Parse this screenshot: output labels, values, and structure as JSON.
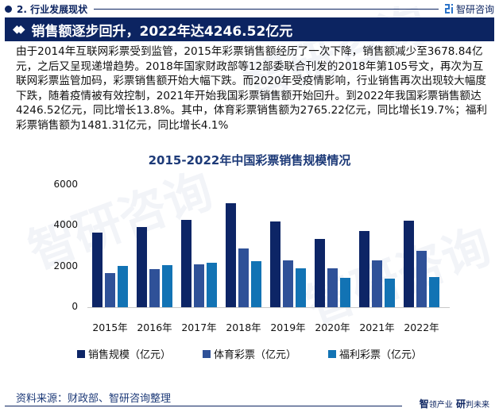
{
  "header": {
    "section": "2. 行业发展现状",
    "brand": "智研咨询",
    "title": "销售额逐步回升，2022年达4246.52亿元"
  },
  "body_text": "由于2014年互联网彩票受到监管，2015年彩票销售额经历了一次下降，销售额减少至3678.84亿元，之后又呈现递增趋势。2018年国家财政部等12部委联合刊发的2018年第105号文，再次为互联网彩票监管加码，彩票销售额开始大幅下跌。而2020年受疫情影响，行业销售再次出现较大幅度下跌，随着疫情被有效控制，2021年开始我国彩票销售额开始回升。到2022年我国彩票销售额达4246.52亿元，同比增长13.8%。其中，体育彩票销售额为2765.22亿元，同比增长19.7%；福利彩票销售额为1481.31亿元，同比增长4.1%",
  "footer": {
    "source": "资料来源：财政部、智研咨询整理",
    "slogan_a": "智",
    "slogan_b": "领产业",
    "slogan_c": "研",
    "slogan_d": "判未来"
  },
  "colors": {
    "navy": "#0c2461",
    "sales": "#0d2566",
    "sports": "#2f5198",
    "welfare": "#1273b4"
  },
  "chart_data": {
    "type": "bar",
    "title": "2015-2022年中国彩票销售规模情况",
    "xlabel": "",
    "ylabel": "",
    "ylim": [
      0,
      6000
    ],
    "yticks": [
      "0",
      "2000",
      "4000",
      "6000"
    ],
    "grid": false,
    "legend_position": "bottom",
    "categories": [
      "2015年",
      "2016年",
      "2017年",
      "2018年",
      "2019年",
      "2020年",
      "2021年",
      "2022年"
    ],
    "series": [
      {
        "name": "销售规模（亿元）",
        "color": "#0d2566",
        "values": [
          3678.84,
          3946.41,
          4266.69,
          5114.72,
          4220.53,
          3339.51,
          3732.85,
          4246.52
        ]
      },
      {
        "name": "体育彩票（亿元）",
        "color": "#2f5198",
        "values": [
          1664.03,
          1881.46,
          2096.92,
          2869.35,
          2308.14,
          1894.46,
          2310.79,
          2765.22
        ]
      },
      {
        "name": "福利彩票（亿元）",
        "color": "#1273b4",
        "values": [
          2015.11,
          2064.92,
          2169.77,
          2245.37,
          1912.38,
          1444.87,
          1422.06,
          1481.31
        ]
      }
    ]
  }
}
